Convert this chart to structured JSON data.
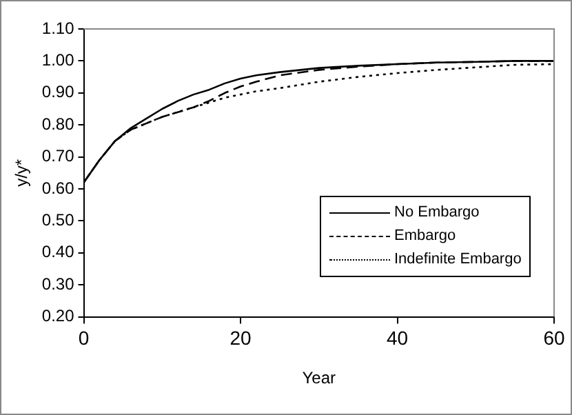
{
  "chart_data": {
    "type": "line",
    "xlabel": "Year",
    "ylabel": "y/y*",
    "xlim": [
      0,
      60
    ],
    "xticks": [
      0,
      20,
      40,
      60
    ],
    "ylim": [
      0.2,
      1.1
    ],
    "yticks": [
      {
        "value": 0.2,
        "label": "0.20"
      },
      {
        "value": 0.3,
        "label": "0.30"
      },
      {
        "value": 0.4,
        "label": "0.40"
      },
      {
        "value": 0.5,
        "label": "0.50"
      },
      {
        "value": 0.6,
        "label": "0.60"
      },
      {
        "value": 0.7,
        "label": "0.70"
      },
      {
        "value": 0.8,
        "label": "0.80"
      },
      {
        "value": 0.9,
        "label": "0.90"
      },
      {
        "value": 1.0,
        "label": "1.00"
      },
      {
        "value": 1.1,
        "label": "1.10"
      }
    ],
    "grid": false,
    "legend": "bottom right",
    "marker": "none",
    "x": [
      0,
      2,
      4,
      6,
      8,
      10,
      12,
      14,
      16,
      18,
      20,
      22,
      25,
      30,
      35,
      40,
      45,
      50,
      55,
      60
    ],
    "series": [
      {
        "name": "No Embargo",
        "color": "#000000",
        "line_style": "solid",
        "values": [
          0.62,
          0.69,
          0.75,
          0.79,
          0.82,
          0.85,
          0.875,
          0.895,
          0.91,
          0.93,
          0.945,
          0.955,
          0.965,
          0.978,
          0.985,
          0.99,
          0.995,
          0.997,
          1.0,
          1.0
        ]
      },
      {
        "name": "Embargo",
        "color": "#000000",
        "line_style": "dashed",
        "values": [
          0.62,
          0.69,
          0.75,
          0.785,
          0.805,
          0.825,
          0.84,
          0.855,
          0.875,
          0.9,
          0.92,
          0.935,
          0.955,
          0.972,
          0.982,
          0.99,
          0.995,
          0.997,
          1.0,
          1.0
        ]
      },
      {
        "name": "Indefinite Embargo",
        "color": "#000000",
        "line_style": "dotted",
        "values": [
          0.62,
          0.69,
          0.75,
          0.785,
          0.805,
          0.825,
          0.84,
          0.855,
          0.87,
          0.885,
          0.895,
          0.905,
          0.915,
          0.935,
          0.95,
          0.962,
          0.972,
          0.98,
          0.988,
          0.99
        ]
      }
    ]
  }
}
